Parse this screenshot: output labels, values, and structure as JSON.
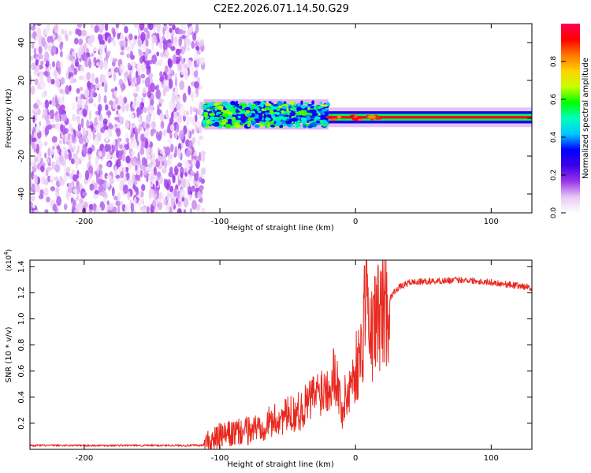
{
  "title": "C2E2.2026.071.14.50.G29",
  "chart_data": [
    {
      "type": "heatmap",
      "xlabel": "Height of straight line (km)",
      "ylabel": "Frequency (Hz)",
      "xlim": [
        -240,
        130
      ],
      "ylim": [
        -50,
        50
      ],
      "x_ticks": [
        "-200",
        "-100",
        "0",
        "100"
      ],
      "y_ticks": [
        "-40",
        "-20",
        "0",
        "20",
        "40"
      ],
      "colorbar": {
        "label": "Normalized spectral amplitude",
        "range": [
          0.0,
          1.0
        ],
        "ticks": [
          "0.0",
          "0.2",
          "0.4",
          "0.6",
          "0.8"
        ],
        "colors": [
          "#ffffff",
          "#e9c8f4",
          "#9a34e9",
          "#3d00e6",
          "#0000ff",
          "#00c8ff",
          "#00ffbb",
          "#00ff00",
          "#c8ff00",
          "#ffd200",
          "#ff7800",
          "#ff0000",
          "#ff0055"
        ]
      },
      "regions": [
        {
          "name": "noise",
          "x_range": [
            -240,
            -112
          ],
          "freq_range": [
            -50,
            50
          ],
          "amplitude": 0.15
        },
        {
          "name": "transition",
          "x_range": [
            -112,
            -20
          ],
          "freq_range": [
            -8,
            8
          ],
          "center_freq": 2,
          "amplitude": 0.45
        },
        {
          "name": "strong-signal",
          "x_range": [
            -20,
            130
          ],
          "freq_range": [
            -2,
            2
          ],
          "center_freq": 0.5,
          "amplitude": 0.95
        }
      ]
    },
    {
      "type": "line",
      "xlabel": "Height of straight line (km)",
      "ylabel": "SNR (10 * v/v)",
      "y_multiplier": "(x10",
      "y_multiplier_exp": "4",
      "y_multiplier_close": ")",
      "xlim": [
        -240,
        130
      ],
      "ylim": [
        0,
        1.45
      ],
      "x_ticks": [
        "-200",
        "-100",
        "0",
        "100"
      ],
      "y_ticks": [
        "0.2",
        "0.4",
        "0.6",
        "0.8",
        "1.0",
        "1.2",
        "1.4"
      ],
      "line_color": "#e8281e",
      "series": [
        {
          "name": "SNR",
          "x": [
            -240,
            -200,
            -150,
            -112,
            -100,
            -80,
            -60,
            -40,
            -30,
            -20,
            -15,
            -10,
            0,
            5,
            8,
            10,
            15,
            20,
            25,
            30,
            40,
            60,
            80,
            100,
            130
          ],
          "y": [
            0.03,
            0.03,
            0.03,
            0.03,
            0.1,
            0.14,
            0.22,
            0.3,
            0.42,
            0.5,
            0.6,
            0.3,
            0.62,
            0.75,
            1.45,
            0.8,
            1.0,
            1.08,
            1.15,
            1.23,
            1.28,
            1.29,
            1.3,
            1.28,
            1.24
          ]
        }
      ]
    }
  ]
}
